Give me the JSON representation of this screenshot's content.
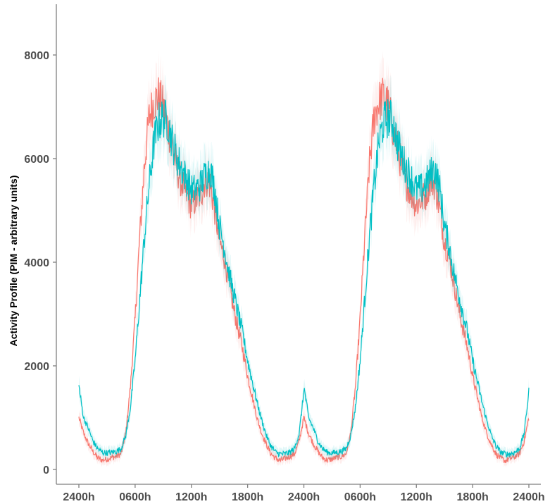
{
  "chart_data": {
    "type": "line",
    "title": "",
    "xlabel": "",
    "ylabel": "Activity Profile (PIM - arbitrary units)",
    "ylim": [
      0,
      8000
    ],
    "xlim_hours": [
      0,
      48
    ],
    "grid": false,
    "legend": "none",
    "x_ticks": [
      {
        "hour": 0,
        "label": "2400h"
      },
      {
        "hour": 6,
        "label": "0600h"
      },
      {
        "hour": 12,
        "label": "1200h"
      },
      {
        "hour": 18,
        "label": "1800h"
      },
      {
        "hour": 24,
        "label": "2400h"
      },
      {
        "hour": 30,
        "label": "0600h"
      },
      {
        "hour": 36,
        "label": "1200h"
      },
      {
        "hour": 42,
        "label": "1800h"
      },
      {
        "hour": 48,
        "label": "2400h"
      }
    ],
    "y_ticks": [
      {
        "value": 0,
        "label": "0"
      },
      {
        "value": 2000,
        "label": "2000"
      },
      {
        "value": 4000,
        "label": "4000"
      },
      {
        "value": 6000,
        "label": "6000"
      },
      {
        "value": 8000,
        "label": "8000"
      }
    ],
    "series": [
      {
        "color": "#F8766D",
        "x": [
          0,
          0.5,
          1,
          1.5,
          2,
          2.5,
          3,
          3.5,
          4,
          4.5,
          5,
          5.5,
          6,
          6.5,
          7,
          7.5,
          8,
          8.5,
          9,
          9.5,
          10,
          10.5,
          11,
          11.5,
          12,
          12.5,
          13,
          13.5,
          14,
          14.5,
          15,
          15.5,
          16,
          16.5,
          17,
          17.5,
          18,
          18.5,
          19,
          19.5,
          20,
          20.5,
          21,
          21.5,
          22,
          22.5,
          23,
          23.5,
          24
        ],
        "y": [
          1000,
          700,
          500,
          350,
          220,
          180,
          200,
          230,
          250,
          300,
          700,
          1600,
          2900,
          4500,
          5900,
          6800,
          7100,
          7200,
          7000,
          6600,
          6200,
          5800,
          5500,
          5300,
          5100,
          5200,
          5300,
          5600,
          5500,
          5000,
          4400,
          4100,
          3600,
          3100,
          2700,
          2300,
          1800,
          1400,
          1000,
          700,
          480,
          300,
          210,
          170,
          210,
          250,
          300,
          550,
          1000
        ],
        "x2": [
          24,
          24.5,
          25,
          25.5,
          26,
          26.5,
          27,
          27.5,
          28,
          28.5,
          29,
          29.5,
          30,
          30.5,
          31,
          31.5,
          32,
          32.5,
          33,
          33.5,
          34,
          34.5,
          35,
          35.5,
          36,
          36.5,
          37,
          37.5,
          38,
          38.5,
          39,
          39.5,
          40,
          40.5,
          41,
          41.5,
          42,
          42.5,
          43,
          43.5,
          44,
          44.5,
          45,
          45.5,
          46,
          46.5,
          47,
          47.5,
          48
        ]
      },
      {
        "color": "#00BFC4",
        "x": [
          0,
          0.5,
          1,
          1.5,
          2,
          2.5,
          3,
          3.5,
          4,
          4.5,
          5,
          5.5,
          6,
          6.5,
          7,
          7.5,
          8,
          8.5,
          9,
          9.5,
          10,
          10.5,
          11,
          11.5,
          12,
          12.5,
          13,
          13.5,
          14,
          14.5,
          15,
          15.5,
          16,
          16.5,
          17,
          17.5,
          18,
          18.5,
          19,
          19.5,
          20,
          20.5,
          21,
          21.5,
          22,
          22.5,
          23,
          23.5,
          24
        ],
        "y": [
          1600,
          1000,
          800,
          550,
          400,
          330,
          320,
          330,
          350,
          400,
          650,
          1200,
          2100,
          3300,
          4500,
          5500,
          6300,
          6700,
          6800,
          6700,
          6300,
          6000,
          5800,
          5600,
          5400,
          5400,
          5500,
          5700,
          5800,
          5400,
          4700,
          4300,
          3800,
          3400,
          3000,
          2600,
          2100,
          1700,
          1300,
          950,
          650,
          450,
          330,
          300,
          300,
          330,
          400,
          700,
          1500
        ]
      }
    ]
  }
}
